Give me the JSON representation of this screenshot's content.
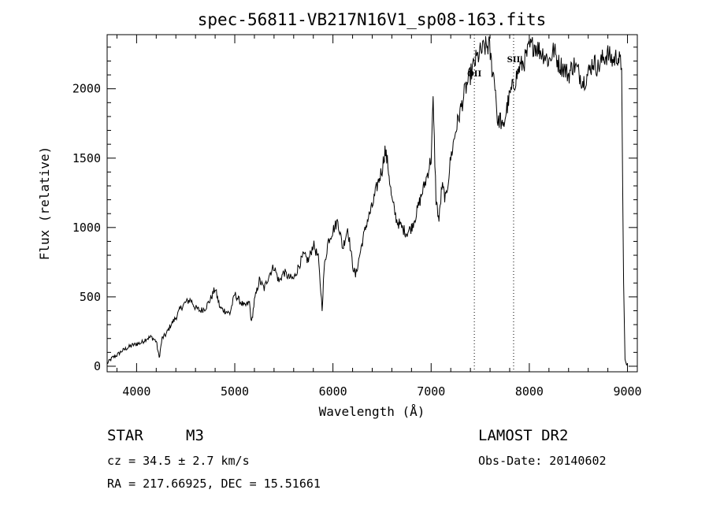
{
  "chart_data": {
    "type": "line",
    "title": "spec-56811-VB217N16V1_sp08-163.fits",
    "xlabel": "Wavelength (Å)",
    "ylabel": "Flux (relative)",
    "xlim": [
      3700,
      9100
    ],
    "ylim": [
      -40,
      2390
    ],
    "xticks": [
      4000,
      5000,
      6000,
      7000,
      8000,
      9000
    ],
    "yticks": [
      0,
      500,
      1000,
      1500,
      2000
    ],
    "grid": false,
    "legend": "none",
    "series": [
      {
        "x": [
          3700,
          3750,
          3800,
          3850,
          3900,
          3950,
          4000,
          4050,
          4100,
          4150,
          4200,
          4230,
          4260,
          4300,
          4350,
          4400,
          4450,
          4500,
          4550,
          4600,
          4650,
          4700,
          4750,
          4800,
          4850,
          4900,
          4950,
          5000,
          5050,
          5100,
          5150,
          5170,
          5200,
          5250,
          5300,
          5350,
          5400,
          5450,
          5500,
          5550,
          5600,
          5650,
          5700,
          5750,
          5800,
          5850,
          5870,
          5890,
          5910,
          5950,
          6000,
          6050,
          6100,
          6150,
          6200,
          6230,
          6250,
          6300,
          6350,
          6400,
          6450,
          6500,
          6530,
          6560,
          6600,
          6650,
          6700,
          6750,
          6800,
          6850,
          6900,
          6950,
          7000,
          7020,
          7050,
          7080,
          7110,
          7150,
          7200,
          7250,
          7300,
          7350,
          7400,
          7450,
          7500,
          7550,
          7590,
          7620,
          7650,
          7680,
          7700,
          7730,
          7760,
          7800,
          7850,
          7900,
          7950,
          8000,
          8050,
          8100,
          8150,
          8200,
          8250,
          8300,
          8350,
          8400,
          8450,
          8500,
          8550,
          8600,
          8650,
          8700,
          8750,
          8800,
          8850,
          8900,
          8940,
          8960,
          8975,
          8990,
          9000
        ],
        "y": [
          20,
          60,
          80,
          110,
          130,
          150,
          160,
          170,
          200,
          210,
          180,
          60,
          200,
          230,
          300,
          350,
          420,
          460,
          480,
          420,
          400,
          420,
          480,
          560,
          420,
          400,
          380,
          520,
          470,
          430,
          460,
          310,
          470,
          620,
          560,
          660,
          720,
          610,
          680,
          640,
          630,
          720,
          800,
          760,
          880,
          780,
          600,
          420,
          700,
          900,
          980,
          1050,
          850,
          1000,
          730,
          650,
          720,
          900,
          1050,
          1150,
          1300,
          1420,
          1560,
          1450,
          1200,
          1050,
          1000,
          960,
          1000,
          1100,
          1230,
          1350,
          1500,
          1900,
          1200,
          1050,
          1300,
          1200,
          1500,
          1700,
          1850,
          2000,
          2100,
          2200,
          2260,
          2300,
          2310,
          2150,
          2050,
          1730,
          1800,
          1700,
          1820,
          1950,
          2050,
          2150,
          2200,
          2290,
          2320,
          2280,
          2250,
          2200,
          2280,
          2180,
          2150,
          2100,
          2180,
          2120,
          2050,
          2110,
          2200,
          2150,
          2220,
          2250,
          2200,
          2240,
          2150,
          600,
          50,
          10,
          20
        ]
      }
    ],
    "annotations": [
      {
        "text": "OII",
        "x": 7440
      },
      {
        "text": "SII",
        "x": 7840
      }
    ]
  },
  "info": {
    "class": "STAR",
    "subclass": "M3",
    "cz": "cz = 34.5 ± 2.7 km/s",
    "coords": "RA = 217.66925, DEC =  15.51661",
    "survey": "LAMOST DR2",
    "obsdate": "Obs-Date: 20140602"
  }
}
